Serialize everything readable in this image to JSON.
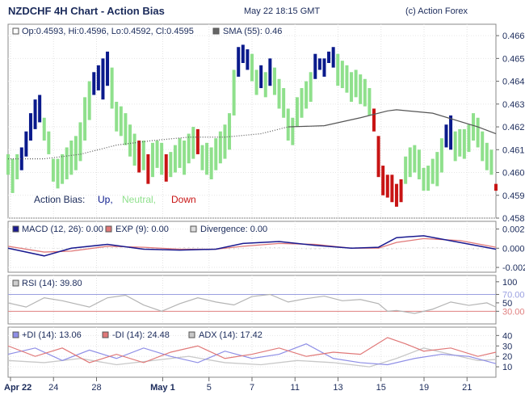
{
  "header": {
    "title": "NZDCHF 4H Chart - Action Bias",
    "datetime": "May 22 18:15 GMT",
    "copyright": "(c) Action Forex"
  },
  "chart_data": [
    {
      "type": "bar",
      "name": "price",
      "legend": [
        "Op:0.4593, Hi:0.4596, Lo:0.4592, Cl:0.4595",
        "SMA (55): 0.46"
      ],
      "bias_legend": {
        "title": "Action Bias:",
        "up": "Up,",
        "neutral": "Neutral,",
        "down": "Down"
      },
      "colors": {
        "up": "#0a1a8c",
        "neutral": "#8fe08c",
        "down": "#c81414",
        "sma": "#555555"
      },
      "ylim": [
        0.458,
        0.4665
      ],
      "yticks": [
        "0.466",
        "0.465",
        "0.464",
        "0.463",
        "0.462",
        "0.461",
        "0.460",
        "0.459",
        "0.458"
      ],
      "bars": [
        [
          "n",
          0.4599,
          0.4608
        ],
        [
          "n",
          0.4591,
          0.4606
        ],
        [
          "n",
          0.4597,
          0.4608
        ],
        [
          "u",
          0.4601,
          0.4611
        ],
        [
          "u",
          0.4607,
          0.4618
        ],
        [
          "u",
          0.4614,
          0.4626
        ],
        [
          "u",
          0.4619,
          0.4632
        ],
        [
          "u",
          0.4622,
          0.4634
        ],
        [
          "n",
          0.4614,
          0.4624
        ],
        [
          "n",
          0.4608,
          0.4618
        ],
        [
          "n",
          0.4596,
          0.4606
        ],
        [
          "n",
          0.4593,
          0.4606
        ],
        [
          "n",
          0.4595,
          0.4608
        ],
        [
          "n",
          0.4597,
          0.4611
        ],
        [
          "n",
          0.4599,
          0.4614
        ],
        [
          "n",
          0.4601,
          0.4616
        ],
        [
          "n",
          0.4605,
          0.4622
        ],
        [
          "n",
          0.4614,
          0.4633
        ],
        [
          "n",
          0.4623,
          0.464
        ],
        [
          "u",
          0.4634,
          0.4644
        ],
        [
          "u",
          0.4636,
          0.4647
        ],
        [
          "u",
          0.4632,
          0.465
        ],
        [
          "u",
          0.4638,
          0.4653
        ],
        [
          "n",
          0.4628,
          0.4646
        ],
        [
          "n",
          0.4618,
          0.4631
        ],
        [
          "n",
          0.4616,
          0.4629
        ],
        [
          "n",
          0.4612,
          0.4626
        ],
        [
          "n",
          0.4607,
          0.4621
        ],
        [
          "n",
          0.4603,
          0.4617
        ],
        [
          "d",
          0.46,
          0.4614
        ],
        [
          "n",
          0.4601,
          0.4614
        ],
        [
          "d",
          0.4595,
          0.4608
        ],
        [
          "n",
          0.4598,
          0.4613
        ],
        [
          "n",
          0.4602,
          0.4614
        ],
        [
          "n",
          0.4599,
          0.4613
        ],
        [
          "d",
          0.4596,
          0.4608
        ],
        [
          "n",
          0.4598,
          0.4609
        ],
        [
          "n",
          0.46,
          0.4612
        ],
        [
          "n",
          0.4602,
          0.4615
        ],
        [
          "n",
          0.4599,
          0.4614
        ],
        [
          "n",
          0.4604,
          0.4617
        ],
        [
          "n",
          0.4606,
          0.462
        ],
        [
          "d",
          0.4608,
          0.4619
        ],
        [
          "n",
          0.4601,
          0.4612
        ],
        [
          "n",
          0.4599,
          0.4613
        ],
        [
          "n",
          0.4597,
          0.4611
        ],
        [
          "n",
          0.4601,
          0.4615
        ],
        [
          "n",
          0.4604,
          0.4618
        ],
        [
          "n",
          0.4606,
          0.4621
        ],
        [
          "n",
          0.461,
          0.4626
        ],
        [
          "n",
          0.4625,
          0.4645
        ],
        [
          "u",
          0.4642,
          0.4655
        ],
        [
          "u",
          0.4648,
          0.4656
        ],
        [
          "u",
          0.4645,
          0.4654
        ],
        [
          "n",
          0.464,
          0.4652
        ],
        [
          "n",
          0.4634,
          0.4645
        ],
        [
          "u",
          0.4637,
          0.4647
        ],
        [
          "n",
          0.4633,
          0.4644
        ],
        [
          "u",
          0.4638,
          0.465
        ],
        [
          "n",
          0.4634,
          0.4646
        ],
        [
          "n",
          0.4628,
          0.4641
        ],
        [
          "n",
          0.4624,
          0.4637
        ],
        [
          "n",
          0.4614,
          0.4628
        ],
        [
          "n",
          0.4612,
          0.4624
        ],
        [
          "n",
          0.462,
          0.4633
        ],
        [
          "n",
          0.4624,
          0.4637
        ],
        [
          "n",
          0.4628,
          0.464
        ],
        [
          "n",
          0.4631,
          0.4644
        ],
        [
          "u",
          0.4641,
          0.4652
        ],
        [
          "u",
          0.4645,
          0.465
        ],
        [
          "u",
          0.4642,
          0.465
        ],
        [
          "u",
          0.4648,
          0.4653
        ],
        [
          "u",
          0.4646,
          0.4655
        ],
        [
          "n",
          0.4638,
          0.4652
        ],
        [
          "n",
          0.4637,
          0.4649
        ],
        [
          "n",
          0.4635,
          0.4647
        ],
        [
          "n",
          0.4631,
          0.4644
        ],
        [
          "n",
          0.4633,
          0.4645
        ],
        [
          "n",
          0.463,
          0.4643
        ],
        [
          "n",
          0.4629,
          0.4641
        ],
        [
          "n",
          0.4625,
          0.4637
        ],
        [
          "d",
          0.4618,
          0.4628
        ],
        [
          "d",
          0.4598,
          0.4616
        ],
        [
          "d",
          0.459,
          0.4603
        ],
        [
          "d",
          0.4589,
          0.4599
        ],
        [
          "d",
          0.4587,
          0.4599
        ],
        [
          "d",
          0.4585,
          0.4595
        ],
        [
          "d",
          0.4587,
          0.4597
        ],
        [
          "n",
          0.4595,
          0.4607
        ],
        [
          "n",
          0.4598,
          0.4611
        ],
        [
          "n",
          0.46,
          0.4612
        ],
        [
          "n",
          0.4597,
          0.461
        ],
        [
          "n",
          0.4592,
          0.4602
        ],
        [
          "n",
          0.4592,
          0.4603
        ],
        [
          "n",
          0.4595,
          0.4606
        ],
        [
          "n",
          0.4594,
          0.4609
        ],
        [
          "n",
          0.46,
          0.4615
        ],
        [
          "u",
          0.4611,
          0.4621
        ],
        [
          "u",
          0.461,
          0.4625
        ],
        [
          "n",
          0.4605,
          0.4618
        ],
        [
          "n",
          0.4607,
          0.4619
        ],
        [
          "n",
          0.4606,
          0.4619
        ],
        [
          "n",
          0.4609,
          0.4621
        ],
        [
          "n",
          0.4614,
          0.4626
        ],
        [
          "n",
          0.4611,
          0.4624
        ],
        [
          "n",
          0.4605,
          0.4618
        ],
        [
          "n",
          0.4601,
          0.4613
        ],
        [
          "n",
          0.4599,
          0.461
        ],
        [
          "d",
          0.4592,
          0.4595
        ]
      ],
      "sma": [
        [
          0,
          0.4606
        ],
        [
          8,
          0.4606
        ],
        [
          16,
          0.4608
        ],
        [
          24,
          0.4612
        ],
        [
          32,
          0.4614
        ],
        [
          40,
          0.46155
        ],
        [
          48,
          0.46155
        ],
        [
          56,
          0.4617
        ],
        [
          62,
          0.462
        ],
        [
          70,
          0.46205
        ],
        [
          78,
          0.4624
        ],
        [
          84,
          0.4627
        ],
        [
          86,
          0.46275
        ],
        [
          94,
          0.4626
        ],
        [
          104,
          0.462
        ],
        [
          108,
          0.4617
        ]
      ]
    },
    {
      "type": "line",
      "name": "macd",
      "legend": [
        "MACD (12, 26): 0.00",
        "EXP (9): 0.00",
        "Divergence: 0.00"
      ],
      "ylim": [
        -0.0025,
        0.0028
      ],
      "yticks": [
        "0.002",
        "0.000",
        "-0.002"
      ],
      "colors": {
        "macd": "#1a1a90",
        "exp": "#e07878",
        "div": "#dcdcdc"
      },
      "macd": [
        [
          0,
          0.0
        ],
        [
          8,
          -0.0008
        ],
        [
          14,
          0.0
        ],
        [
          22,
          0.0004
        ],
        [
          30,
          -0.0001
        ],
        [
          38,
          -0.0002
        ],
        [
          46,
          -0.0001
        ],
        [
          52,
          0.0005
        ],
        [
          60,
          0.0007
        ],
        [
          68,
          0.0003
        ],
        [
          76,
          0.0
        ],
        [
          82,
          0.0001
        ],
        [
          86,
          0.0011
        ],
        [
          92,
          0.0013
        ],
        [
          100,
          0.0006
        ],
        [
          108,
          -0.0001
        ]
      ],
      "exp": [
        [
          0,
          0.0002
        ],
        [
          8,
          -0.0004
        ],
        [
          14,
          -0.0003
        ],
        [
          22,
          0.0002
        ],
        [
          30,
          0.0001
        ],
        [
          38,
          -0.0001
        ],
        [
          46,
          -0.0001
        ],
        [
          52,
          0.0002
        ],
        [
          60,
          0.0005
        ],
        [
          68,
          0.0004
        ],
        [
          76,
          0.0
        ],
        [
          82,
          0.0
        ],
        [
          86,
          0.0006
        ],
        [
          92,
          0.001
        ],
        [
          100,
          0.0008
        ],
        [
          108,
          0.0001
        ]
      ]
    },
    {
      "type": "line",
      "name": "rsi",
      "legend": [
        "RSI (14): 39.80"
      ],
      "ylim": [
        0,
        115
      ],
      "yticks": [
        "100",
        "70.00",
        "50",
        "30.00"
      ],
      "colors": {
        "rsi": "#b4b4b4",
        "line70": "#9aa0e0",
        "line30": "#e08080"
      },
      "rsi": [
        [
          0,
          50
        ],
        [
          4,
          40
        ],
        [
          8,
          62
        ],
        [
          12,
          55
        ],
        [
          18,
          40
        ],
        [
          22,
          62
        ],
        [
          26,
          68
        ],
        [
          30,
          45
        ],
        [
          34,
          30
        ],
        [
          38,
          48
        ],
        [
          42,
          62
        ],
        [
          46,
          52
        ],
        [
          50,
          45
        ],
        [
          54,
          65
        ],
        [
          58,
          70
        ],
        [
          62,
          52
        ],
        [
          66,
          60
        ],
        [
          70,
          66
        ],
        [
          74,
          55
        ],
        [
          78,
          58
        ],
        [
          82,
          48
        ],
        [
          84,
          30
        ],
        [
          86,
          32
        ],
        [
          90,
          25
        ],
        [
          94,
          35
        ],
        [
          98,
          52
        ],
        [
          102,
          44
        ],
        [
          106,
          50
        ],
        [
          108,
          40
        ]
      ]
    },
    {
      "type": "line",
      "name": "dmi",
      "legend": [
        "+DI (14): 13.06",
        "-DI (14): 24.48",
        "ADX (14): 17.42"
      ],
      "ylim": [
        0,
        48
      ],
      "yticks": [
        "40",
        "30",
        "20",
        "10"
      ],
      "colors": {
        "pdi": "#8e8ee6",
        "mdi": "#e07878",
        "adx": "#c8c8c8"
      },
      "pdi": [
        [
          0,
          22
        ],
        [
          6,
          28
        ],
        [
          12,
          16
        ],
        [
          18,
          26
        ],
        [
          24,
          18
        ],
        [
          30,
          28
        ],
        [
          36,
          20
        ],
        [
          42,
          14
        ],
        [
          48,
          25
        ],
        [
          54,
          18
        ],
        [
          60,
          22
        ],
        [
          66,
          32
        ],
        [
          72,
          18
        ],
        [
          78,
          14
        ],
        [
          84,
          12
        ],
        [
          90,
          18
        ],
        [
          96,
          22
        ],
        [
          102,
          20
        ],
        [
          108,
          13
        ]
      ],
      "mdi": [
        [
          0,
          30
        ],
        [
          6,
          20
        ],
        [
          12,
          28
        ],
        [
          18,
          14
        ],
        [
          24,
          22
        ],
        [
          30,
          14
        ],
        [
          36,
          24
        ],
        [
          42,
          30
        ],
        [
          48,
          18
        ],
        [
          54,
          22
        ],
        [
          60,
          28
        ],
        [
          66,
          20
        ],
        [
          72,
          24
        ],
        [
          78,
          22
        ],
        [
          84,
          38
        ],
        [
          88,
          32
        ],
        [
          92,
          25
        ],
        [
          98,
          28
        ],
        [
          104,
          20
        ],
        [
          108,
          24
        ]
      ],
      "adx": [
        [
          0,
          16
        ],
        [
          8,
          14
        ],
        [
          16,
          18
        ],
        [
          24,
          12
        ],
        [
          32,
          16
        ],
        [
          40,
          20
        ],
        [
          48,
          14
        ],
        [
          56,
          12
        ],
        [
          64,
          16
        ],
        [
          72,
          14
        ],
        [
          80,
          10
        ],
        [
          86,
          18
        ],
        [
          92,
          28
        ],
        [
          98,
          22
        ],
        [
          104,
          16
        ],
        [
          108,
          17
        ]
      ]
    }
  ],
  "xaxis": {
    "labels": [
      "Apr 22",
      "24",
      "28",
      "May 1",
      "5",
      "7",
      "11",
      "13",
      "15",
      "19",
      "21"
    ],
    "positions": [
      0,
      13,
      26,
      46,
      60,
      73,
      86,
      99,
      112,
      125,
      138
    ]
  }
}
